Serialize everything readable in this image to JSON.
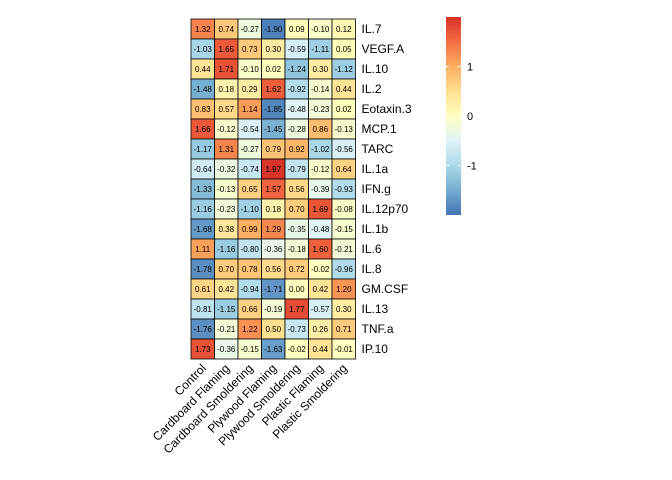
{
  "chart_data": {
    "type": "heatmap",
    "columns": [
      "Control",
      "Cardboard Flaming",
      "Cardboard Smoldering",
      "Plywood Flaming",
      "Plywood Smoldering",
      "Plastic Flaming",
      "Plastic Smoldering"
    ],
    "rows": [
      "IL.7",
      "VEGF.A",
      "IL.10",
      "IL.2",
      "Eotaxin.3",
      "MCP.1",
      "TARC",
      "IL.1a",
      "IFN.g",
      "IL.12p70",
      "IL.1b",
      "IL.6",
      "IL.8",
      "GM.CSF",
      "IL.13",
      "TNF.a",
      "IP.10"
    ],
    "values": [
      [
        1.32,
        0.74,
        -0.27,
        -1.9,
        0.09,
        -0.1,
        0.12
      ],
      [
        -1.03,
        1.65,
        0.73,
        0.3,
        -0.59,
        -1.11,
        0.05
      ],
      [
        0.44,
        1.71,
        -0.1,
        0.02,
        -1.24,
        0.3,
        -1.12
      ],
      [
        -1.48,
        0.18,
        0.29,
        1.62,
        -0.92,
        -0.14,
        0.44
      ],
      [
        0.83,
        0.57,
        1.14,
        -1.85,
        -0.48,
        -0.23,
        0.02
      ],
      [
        1.66,
        -0.12,
        -0.54,
        -1.45,
        -0.28,
        0.86,
        -0.13
      ],
      [
        -1.17,
        1.31,
        -0.27,
        0.79,
        0.92,
        -1.02,
        -0.56
      ],
      [
        -0.64,
        -0.32,
        -0.74,
        1.97,
        -0.79,
        -0.12,
        0.64
      ],
      [
        -1.33,
        -0.13,
        0.65,
        1.57,
        0.56,
        -0.39,
        -0.93
      ],
      [
        -1.16,
        -0.23,
        -1.1,
        0.18,
        0.7,
        1.69,
        -0.08
      ],
      [
        -1.68,
        0.38,
        0.99,
        1.29,
        -0.35,
        -0.48,
        -0.15
      ],
      [
        1.11,
        -1.16,
        -0.8,
        -0.36,
        -0.18,
        1.6,
        -0.21
      ],
      [
        -1.78,
        0.7,
        0.78,
        0.56,
        0.72,
        -0.02,
        -0.96
      ],
      [
        0.61,
        0.42,
        -0.94,
        -1.71,
        0.0,
        0.42,
        1.2
      ],
      [
        -0.81,
        -1.15,
        0.66,
        -0.19,
        1.77,
        -0.57,
        0.3
      ],
      [
        -1.76,
        -0.21,
        1.22,
        0.5,
        -0.73,
        0.26,
        0.71
      ],
      [
        1.73,
        -0.36,
        -0.15,
        -1.63,
        -0.02,
        0.44,
        -0.01
      ]
    ],
    "color_scale": {
      "low": "#4575b4",
      "mid": "#ffffbf",
      "high": "#d73027",
      "stops": [
        {
          "v": -2.0,
          "c": "#4575b4"
        },
        {
          "v": -1.5,
          "c": "#74add1"
        },
        {
          "v": -1.0,
          "c": "#abd9e9"
        },
        {
          "v": -0.5,
          "c": "#e0f3f8"
        },
        {
          "v": 0.0,
          "c": "#ffffbf"
        },
        {
          "v": 0.5,
          "c": "#fee090"
        },
        {
          "v": 1.0,
          "c": "#fdae61"
        },
        {
          "v": 1.5,
          "c": "#f46d43"
        },
        {
          "v": 2.0,
          "c": "#d73027"
        }
      ]
    },
    "legend": {
      "ticks": [
        1,
        0,
        -1
      ],
      "range": [
        -2.0,
        2.0
      ],
      "placement": "right"
    },
    "title": "",
    "xlabel": "",
    "ylabel": ""
  }
}
